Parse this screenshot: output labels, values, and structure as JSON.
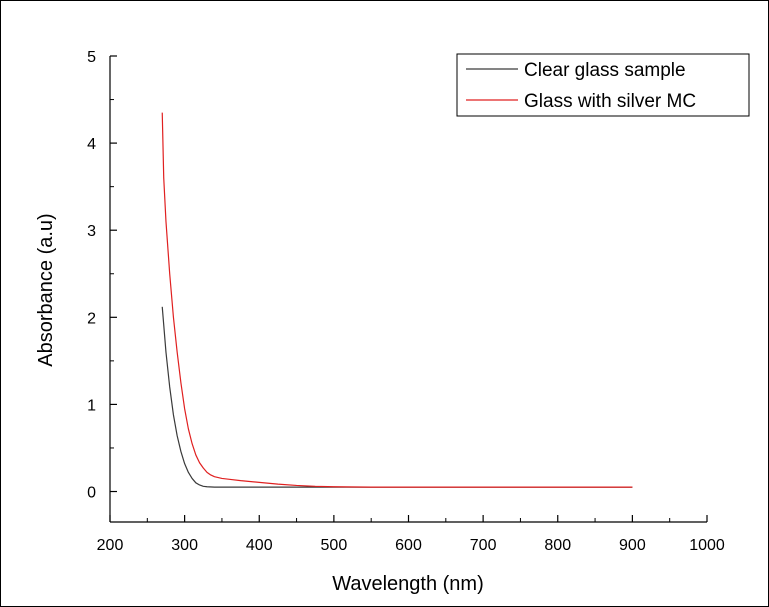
{
  "chart_data": {
    "type": "line",
    "title": "",
    "xlabel": "Wavelength (nm)",
    "ylabel": "Absorbance (a.u)",
    "xlim": [
      200,
      1000
    ],
    "ylim": [
      -0.35,
      5
    ],
    "x_ticks": [
      200,
      300,
      400,
      500,
      600,
      700,
      800,
      900,
      1000
    ],
    "x_tick_labels": [
      "200",
      "300",
      "400",
      "500",
      "600",
      "700",
      "800",
      "900",
      "1000"
    ],
    "y_ticks": [
      0,
      1,
      2,
      3,
      4,
      5
    ],
    "y_tick_labels": [
      "0",
      "1",
      "2",
      "3",
      "4",
      "5"
    ],
    "grid": false,
    "legend_position": "top-right",
    "series": [
      {
        "name": "Clear glass sample",
        "color": "#3a3a3a",
        "x": [
          270,
          275,
          280,
          285,
          290,
          295,
          300,
          305,
          310,
          315,
          320,
          325,
          330,
          340,
          350,
          400,
          500,
          600,
          700,
          800,
          900
        ],
        "y": [
          2.12,
          1.6,
          1.2,
          0.88,
          0.64,
          0.46,
          0.32,
          0.22,
          0.15,
          0.1,
          0.075,
          0.06,
          0.055,
          0.05,
          0.05,
          0.05,
          0.05,
          0.05,
          0.05,
          0.05,
          0.05
        ]
      },
      {
        "name": "Glass with silver MC",
        "color": "#e02020",
        "x": [
          270,
          272,
          275,
          280,
          285,
          290,
          295,
          300,
          305,
          310,
          315,
          320,
          325,
          330,
          335,
          340,
          350,
          360,
          375,
          400,
          425,
          450,
          475,
          500,
          550,
          600,
          700,
          800,
          900
        ],
        "y": [
          4.35,
          3.6,
          3.1,
          2.5,
          2.0,
          1.6,
          1.25,
          0.95,
          0.72,
          0.55,
          0.42,
          0.33,
          0.27,
          0.22,
          0.19,
          0.17,
          0.15,
          0.14,
          0.125,
          0.105,
          0.085,
          0.07,
          0.06,
          0.055,
          0.05,
          0.05,
          0.05,
          0.05,
          0.05
        ]
      }
    ]
  }
}
